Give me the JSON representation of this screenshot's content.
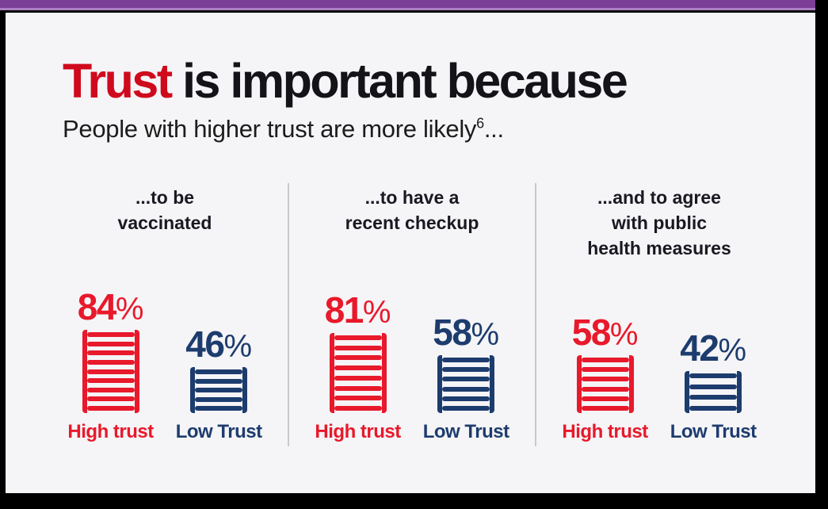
{
  "frame": {
    "top_bar_color": "#7c3f98",
    "top_bar_accent_color": "#aa80c2",
    "slide_background": "#f5f4f6",
    "border_color": "#000000",
    "divider_color": "#c9c9cd"
  },
  "header": {
    "title_highlight": "Trust",
    "title_rest": " is important because",
    "title_highlight_color": "#cf0a1d",
    "subtitle_text": "People with higher trust are more likely",
    "subtitle_superscript": "6",
    "subtitle_ellipsis": "..."
  },
  "chart_data": {
    "type": "bar",
    "variant": "pictogram-ladder",
    "unit": "%",
    "title": "Trust is important because",
    "subtitle": "People with higher trust are more likely...",
    "legend": [
      "High trust",
      "Low Trust"
    ],
    "legend_position": "below-each-pictogram",
    "categories": [
      "...to be vaccinated",
      "...to have a recent checkup",
      "...and to agree with public health measures"
    ],
    "series": [
      {
        "name": "High trust",
        "color": "#e8192b",
        "values": [
          84,
          81,
          58
        ]
      },
      {
        "name": "Low Trust",
        "color": "#1d3c6e",
        "values": [
          46,
          58,
          42
        ]
      }
    ],
    "columns": [
      {
        "heading": "...to be\nvaccinated",
        "high": {
          "value": 84,
          "display": "84",
          "unit": "%",
          "label": "High trust",
          "rungs": 9
        },
        "low": {
          "value": 46,
          "display": "46",
          "unit": "%",
          "label": "Low Trust",
          "rungs": 5
        }
      },
      {
        "heading": "...to have a\nrecent checkup",
        "high": {
          "value": 81,
          "display": "81",
          "unit": "%",
          "label": "High trust",
          "rungs": 8
        },
        "low": {
          "value": 58,
          "display": "58",
          "unit": "%",
          "label": "Low Trust",
          "rungs": 6
        }
      },
      {
        "heading": "...and to agree\nwith public\nhealth measures",
        "high": {
          "value": 58,
          "display": "58",
          "unit": "%",
          "label": "High trust",
          "rungs": 6
        },
        "low": {
          "value": 42,
          "display": "42",
          "unit": "%",
          "label": "Low Trust",
          "rungs": 4
        }
      }
    ],
    "colors": {
      "high_trust": "#e8192b",
      "low_trust": "#1d3c6e"
    }
  }
}
